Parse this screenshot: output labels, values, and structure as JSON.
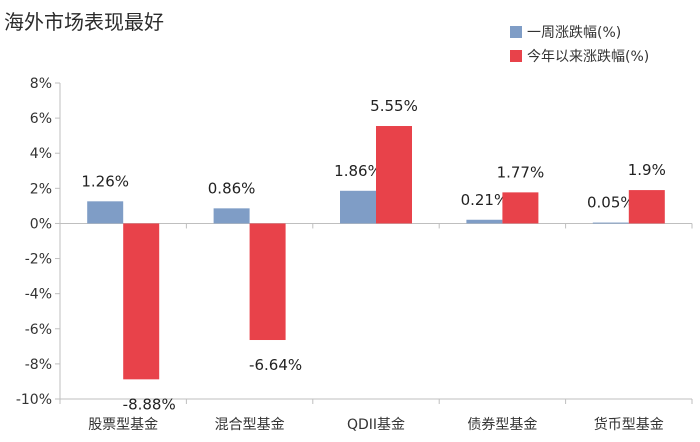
{
  "chart_data": {
    "type": "bar",
    "title": "海外市场表现最好",
    "categories": [
      "股票型基金",
      "混合型基金",
      "QDII基金",
      "债券型基金",
      "货币型基金"
    ],
    "series": [
      {
        "name": "一周涨跌幅(%)",
        "color": "#7f9dc6",
        "values": [
          1.26,
          0.86,
          1.86,
          0.21,
          0.05
        ]
      },
      {
        "name": "今年以来涨跌幅(%)",
        "color": "#e8424a",
        "values": [
          -8.88,
          -6.64,
          5.55,
          1.77,
          1.9
        ]
      }
    ],
    "data_labels": [
      [
        "1.26%",
        "0.86%",
        "1.86%",
        "0.21%",
        "0.05%"
      ],
      [
        "-8.88%",
        "-6.64%",
        "5.55%",
        "1.77%",
        "1.9%"
      ]
    ],
    "ylim": [
      -10,
      8
    ],
    "yticks": [
      8,
      6,
      4,
      2,
      0,
      -2,
      -4,
      -6,
      -8,
      -10
    ],
    "ytick_labels": [
      "8%",
      "6%",
      "4%",
      "2%",
      "0%",
      "-2%",
      "-4%",
      "-6%",
      "-8%",
      "-10%"
    ],
    "legend_position": "top-right"
  }
}
